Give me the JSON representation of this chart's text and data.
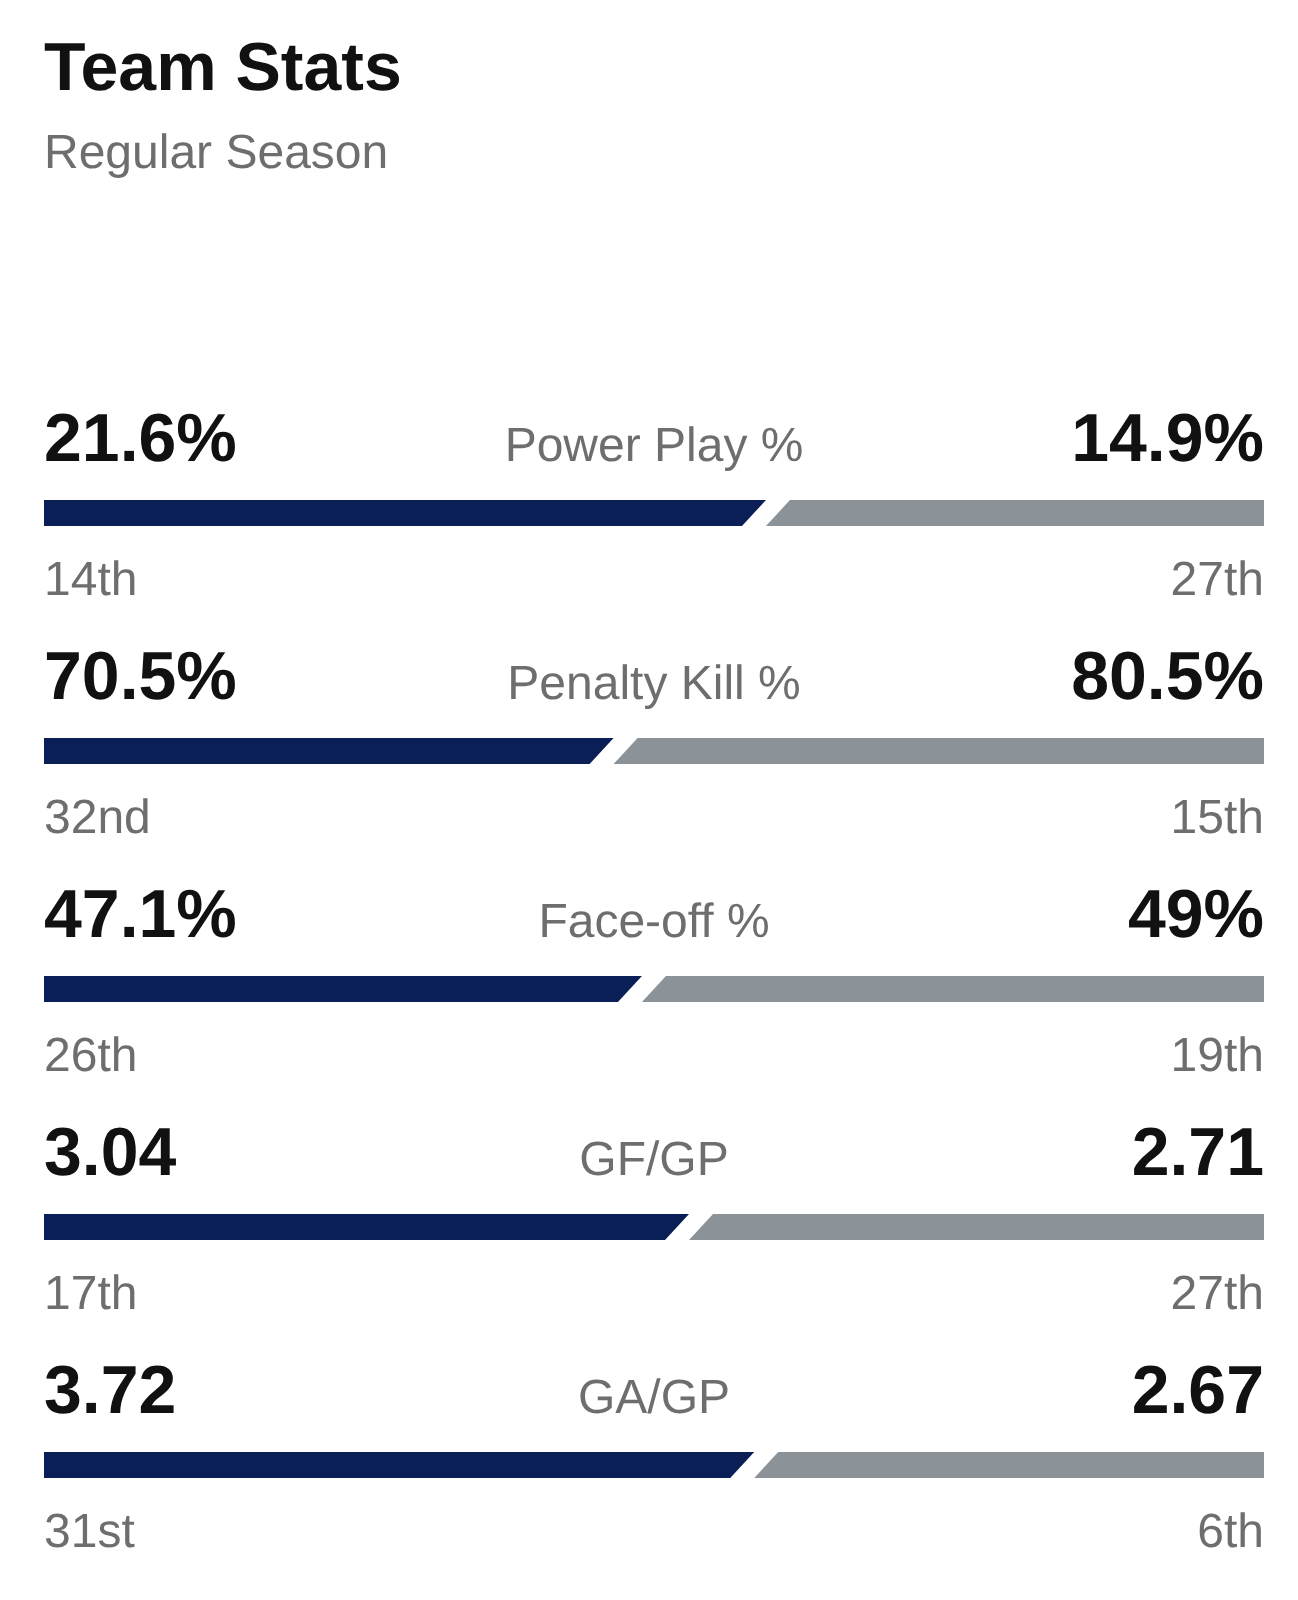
{
  "chart_data": [
    {
      "type": "bar",
      "orientation": "horizontal",
      "stacked": true,
      "title": "Team Stats",
      "subtitle": "Regular Season",
      "categories": [
        "Power Play %"
      ],
      "series": [
        {
          "color": "#0b1f57",
          "values": [
            21.6
          ],
          "value_labels": [
            "21.6%"
          ]
        },
        {
          "color": "#8c9398",
          "values": [
            14.9
          ],
          "value_labels": [
            "14.9%"
          ]
        }
      ],
      "xlim": [
        0,
        36.5
      ],
      "tick_labels": "y",
      "annotations": [
        "14th",
        "27th"
      ]
    },
    {
      "type": "bar",
      "orientation": "horizontal",
      "stacked": true,
      "categories": [
        "Penalty Kill %"
      ],
      "series": [
        {
          "color": "#0b1f57",
          "values": [
            70.5
          ],
          "value_labels": [
            "70.5%"
          ]
        },
        {
          "color": "#8c9398",
          "values": [
            80.5
          ],
          "value_labels": [
            "80.5%"
          ]
        }
      ],
      "xlim": [
        0,
        151
      ],
      "tick_labels": "y",
      "annotations": [
        "32nd",
        "15th"
      ]
    },
    {
      "type": "bar",
      "orientation": "horizontal",
      "stacked": true,
      "categories": [
        "Face-off %"
      ],
      "series": [
        {
          "color": "#0b1f57",
          "values": [
            47.1
          ],
          "value_labels": [
            "47.1%"
          ]
        },
        {
          "color": "#8c9398",
          "values": [
            49
          ],
          "value_labels": [
            "49%"
          ]
        }
      ],
      "xlim": [
        0,
        96.1
      ],
      "tick_labels": "y",
      "annotations": [
        "26th",
        "19th"
      ]
    },
    {
      "type": "bar",
      "orientation": "horizontal",
      "stacked": true,
      "categories": [
        "GF/GP"
      ],
      "series": [
        {
          "color": "#0b1f57",
          "values": [
            3.04
          ],
          "value_labels": [
            "3.04"
          ]
        },
        {
          "color": "#8c9398",
          "values": [
            2.71
          ],
          "value_labels": [
            "2.71"
          ]
        }
      ],
      "xlim": [
        0,
        5.75
      ],
      "tick_labels": "y",
      "annotations": [
        "17th",
        "27th"
      ]
    },
    {
      "type": "bar",
      "orientation": "horizontal",
      "stacked": true,
      "categories": [
        "GA/GP"
      ],
      "series": [
        {
          "color": "#0b1f57",
          "values": [
            3.72
          ],
          "value_labels": [
            "3.72"
          ]
        },
        {
          "color": "#8c9398",
          "values": [
            2.67
          ],
          "value_labels": [
            "2.67"
          ]
        }
      ],
      "xlim": [
        0,
        6.39
      ],
      "tick_labels": "y",
      "annotations": [
        "31st",
        "6th"
      ]
    }
  ]
}
